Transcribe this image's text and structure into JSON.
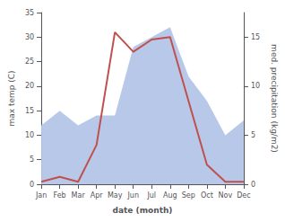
{
  "chart_data": {
    "type": "line",
    "xlabel": "date (month)",
    "ylabel": "max temp (C)",
    "y2label": "med. precipitation (kg/m2)",
    "categories": [
      "Jan",
      "Feb",
      "Mar",
      "Apr",
      "May",
      "Jun",
      "Jul",
      "Aug",
      "Sep",
      "Oct",
      "Nov",
      "Dec"
    ],
    "series": [
      {
        "type": "area",
        "axis": "y2",
        "color": "#b8c8e8",
        "values": [
          6.0,
          7.5,
          6.0,
          7.0,
          7.0,
          14.0,
          15.0,
          16.0,
          11.0,
          8.5,
          5.0,
          6.5
        ]
      },
      {
        "type": "line",
        "color": "#c0504d",
        "values": [
          0.5,
          1.5,
          0.5,
          8.0,
          31.0,
          27.0,
          29.5,
          30.0,
          17.0,
          4.0,
          0.5,
          0.5
        ]
      }
    ],
    "ylim": [
      0,
      35
    ],
    "yticks": [
      0,
      5,
      10,
      15,
      20,
      25,
      30,
      35
    ],
    "y2lim": [
      0,
      17.5
    ],
    "y2ticks": [
      0,
      5,
      10,
      15
    ],
    "grid": false
  }
}
